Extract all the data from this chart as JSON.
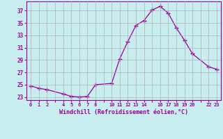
{
  "x": [
    0,
    1,
    2,
    4,
    5,
    6,
    7,
    8,
    10,
    11,
    12,
    13,
    14,
    15,
    16,
    17,
    18,
    19,
    20,
    22,
    23
  ],
  "y": [
    24.8,
    24.4,
    24.2,
    23.5,
    23.1,
    23.0,
    23.1,
    25.0,
    25.2,
    29.2,
    32.0,
    34.6,
    35.4,
    37.1,
    37.7,
    36.6,
    34.2,
    32.2,
    30.0,
    27.9,
    27.5
  ],
  "line_color": "#990099",
  "marker": "+",
  "marker_size": 4,
  "bg_color": "#c8eef0",
  "grid_color": "#b0b0b8",
  "xlabel": "Windchill (Refroidissement éolien,°C)",
  "xlabel_color": "#990099",
  "tick_color": "#990099",
  "ytick_vals": [
    23,
    25,
    27,
    29,
    31,
    33,
    35,
    37
  ],
  "xlim": [
    -0.5,
    23.5
  ],
  "ylim": [
    22.5,
    38.5
  ],
  "figsize": [
    3.2,
    2.0
  ],
  "dpi": 100
}
